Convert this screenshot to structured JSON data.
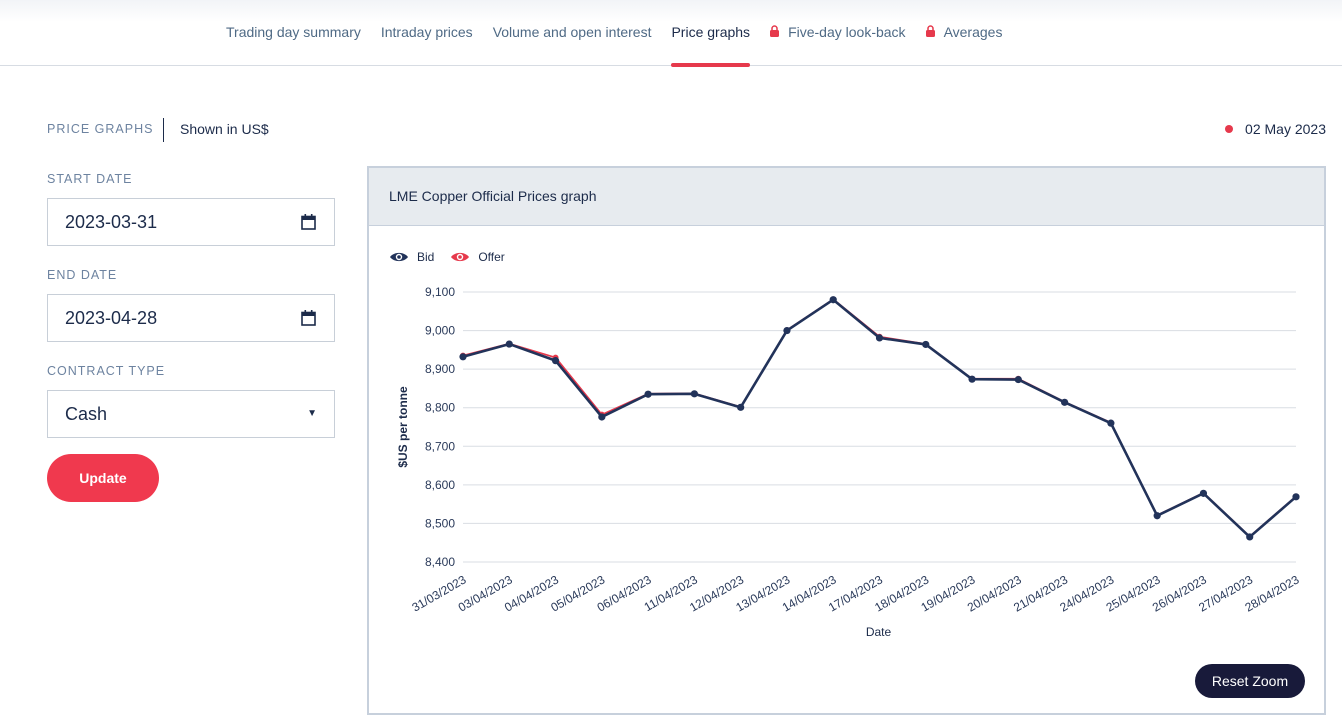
{
  "nav": {
    "tabs": [
      {
        "label": "Trading day summary",
        "locked": false
      },
      {
        "label": "Intraday prices",
        "locked": false
      },
      {
        "label": "Volume and open interest",
        "locked": false
      },
      {
        "label": "Price graphs",
        "locked": false,
        "active": true
      },
      {
        "label": "Five-day look-back",
        "locked": true
      },
      {
        "label": "Averages",
        "locked": true
      }
    ]
  },
  "header": {
    "section": "PRICE GRAPHS",
    "currency": "Shown in US$",
    "date": "02 May 2023"
  },
  "form": {
    "start_label": "START DATE",
    "start_value": "2023-03-31",
    "end_label": "END DATE",
    "end_value": "2023-04-28",
    "contract_label": "CONTRACT TYPE",
    "contract_value": "Cash",
    "update_label": "Update"
  },
  "card": {
    "title": "LME Copper Official Prices graph",
    "reset_label": "Reset Zoom"
  },
  "colors": {
    "accent": "#f0394e",
    "bid": "#22335a",
    "offer": "#e6394c"
  },
  "chart_data": {
    "type": "line",
    "title": "LME Copper Official Prices graph",
    "xlabel": "Date",
    "ylabel": "$US per tonne",
    "ylim": [
      8400,
      9100
    ],
    "yticks": [
      8400,
      8500,
      8600,
      8700,
      8800,
      8900,
      9000,
      9100
    ],
    "ytick_labels": [
      "8,400",
      "8,500",
      "8,600",
      "8,700",
      "8,800",
      "8,900",
      "9,000",
      "9,100"
    ],
    "categories": [
      "31/03/2023",
      "03/04/2023",
      "04/04/2023",
      "05/04/2023",
      "06/04/2023",
      "11/04/2023",
      "12/04/2023",
      "13/04/2023",
      "14/04/2023",
      "17/04/2023",
      "18/04/2023",
      "19/04/2023",
      "20/04/2023",
      "21/04/2023",
      "24/04/2023",
      "25/04/2023",
      "26/04/2023",
      "27/04/2023",
      "28/04/2023"
    ],
    "series": [
      {
        "name": "Bid",
        "values": [
          8932,
          8965,
          8922,
          8776,
          8835,
          8836,
          8801,
          9000,
          9080,
          8981,
          8964,
          8874,
          8873,
          8814,
          8760,
          8520,
          8578,
          8465,
          8569
        ]
      },
      {
        "name": "Offer",
        "values": [
          8935,
          8966,
          8930,
          8782,
          8836,
          8837,
          8802,
          9001,
          9081,
          8984,
          8965,
          8875,
          8875,
          8815,
          8761,
          8521,
          8579,
          8466,
          8570
        ]
      }
    ],
    "legend": "top-left"
  }
}
